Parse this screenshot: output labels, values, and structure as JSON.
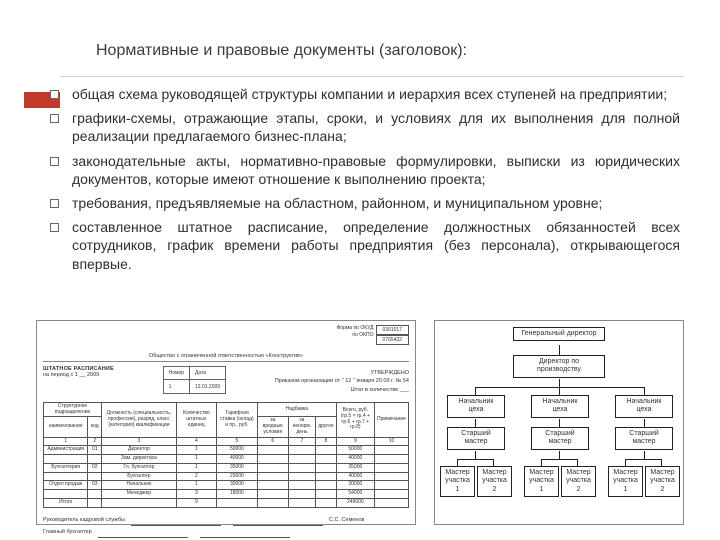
{
  "header": {
    "title": "Нормативные и правовые документы (заголовок):"
  },
  "accent_color": "#c0392b",
  "bullets": [
    "общая схема руководящей структуры компании и иерархия всех ступеней на предприятии;",
    "графики-схемы, отражающие этапы, сроки, и условиях для их выполнения для полной реализации предлагаемого бизнес-плана;",
    "законодательные акты, нормативно-правовые формулировки, выписки из юридических документов, которые имеют отношение к выполнению проекта;",
    "требования, предъявляемые на областном, районном, и муниципальном уровне;",
    "составленное штатное расписание, определение должностных обязанностей всех сотрудников, график времени работы предприятия (без персонала), открывающегося впервые."
  ],
  "staff_doc": {
    "form_codes": {
      "label1": "Форма по ОКУД",
      "code1": "0301017",
      "label2": "по ОКПО",
      "code2": "0765432"
    },
    "org_line": "Общество с ограниченной ответственностью «Конструктив»",
    "title": "ШТАТНОЕ РАСПИСАНИЕ",
    "period": "на период с 1 __ 2009",
    "mini": {
      "r1c1": "Номер",
      "r1c2": "Дата",
      "r2c1": "1",
      "r2c2": "12.01.2009"
    },
    "approve_l1": "УТВЕРЖДЕНО",
    "approve_l2": "Приказом организации от \" 12 \" января 20 09 г. № 54",
    "approve_l3": "Штат в количестве ___",
    "columns": [
      "Структурное подразделение",
      "Должность (специальность, профессия), разряд, класс (категория) квалификации",
      "Количество штатных единиц",
      "Тарифная ставка (оклад) и пр., руб.",
      "Надбавка",
      "Всего, руб. (гр.5 × гр.4 + гр.6 + гр.7 + гр.8)",
      "Примечание"
    ],
    "subcols": {
      "c1": "наименование",
      "c2": "код",
      "c5a": "за вредные условия",
      "c5b": "за ненорм. день",
      "c5c": "другое"
    },
    "nums": [
      "1",
      "2",
      "3",
      "4",
      "5",
      "6",
      "7",
      "8",
      "9",
      "10"
    ],
    "rows": [
      [
        "Администрация",
        "01",
        "Директор",
        "1",
        "50000",
        "",
        "",
        "",
        "50000",
        ""
      ],
      [
        "",
        "",
        "Зам. директора",
        "1",
        "40000",
        "",
        "",
        "",
        "40000",
        ""
      ],
      [
        "Бухгалтерия",
        "02",
        "Гл. бухгалтер",
        "1",
        "35000",
        "",
        "",
        "",
        "35000",
        ""
      ],
      [
        "",
        "",
        "Бухгалтер",
        "2",
        "20000",
        "",
        "",
        "",
        "40000",
        ""
      ],
      [
        "Отдел продаж",
        "03",
        "Начальник",
        "1",
        "30000",
        "",
        "",
        "",
        "30000",
        ""
      ],
      [
        "",
        "",
        "Менеджер",
        "3",
        "18000",
        "",
        "",
        "",
        "54000",
        ""
      ],
      [
        "Итого",
        "",
        "",
        "9",
        "",
        "",
        "",
        "",
        "249000",
        ""
      ]
    ],
    "sig1": "Руководитель кадровой службы",
    "sig1_name": "С.С. Семенов",
    "sig2": "Главный бухгалтер"
  },
  "org_chart": {
    "top": "Генеральный директор",
    "l2": "Директор по производству",
    "l3": [
      "Начальник цеха",
      "Начальник цеха",
      "Начальник цеха"
    ],
    "l4": [
      "Старший мастер",
      "Старший мастер",
      "Старший мастер"
    ],
    "l5": [
      "Мастер участка 1",
      "Мастер участка 2",
      "Мастер участка 1",
      "Мастер участка 2",
      "Мастер участка 1",
      "Мастер участка 2"
    ]
  }
}
